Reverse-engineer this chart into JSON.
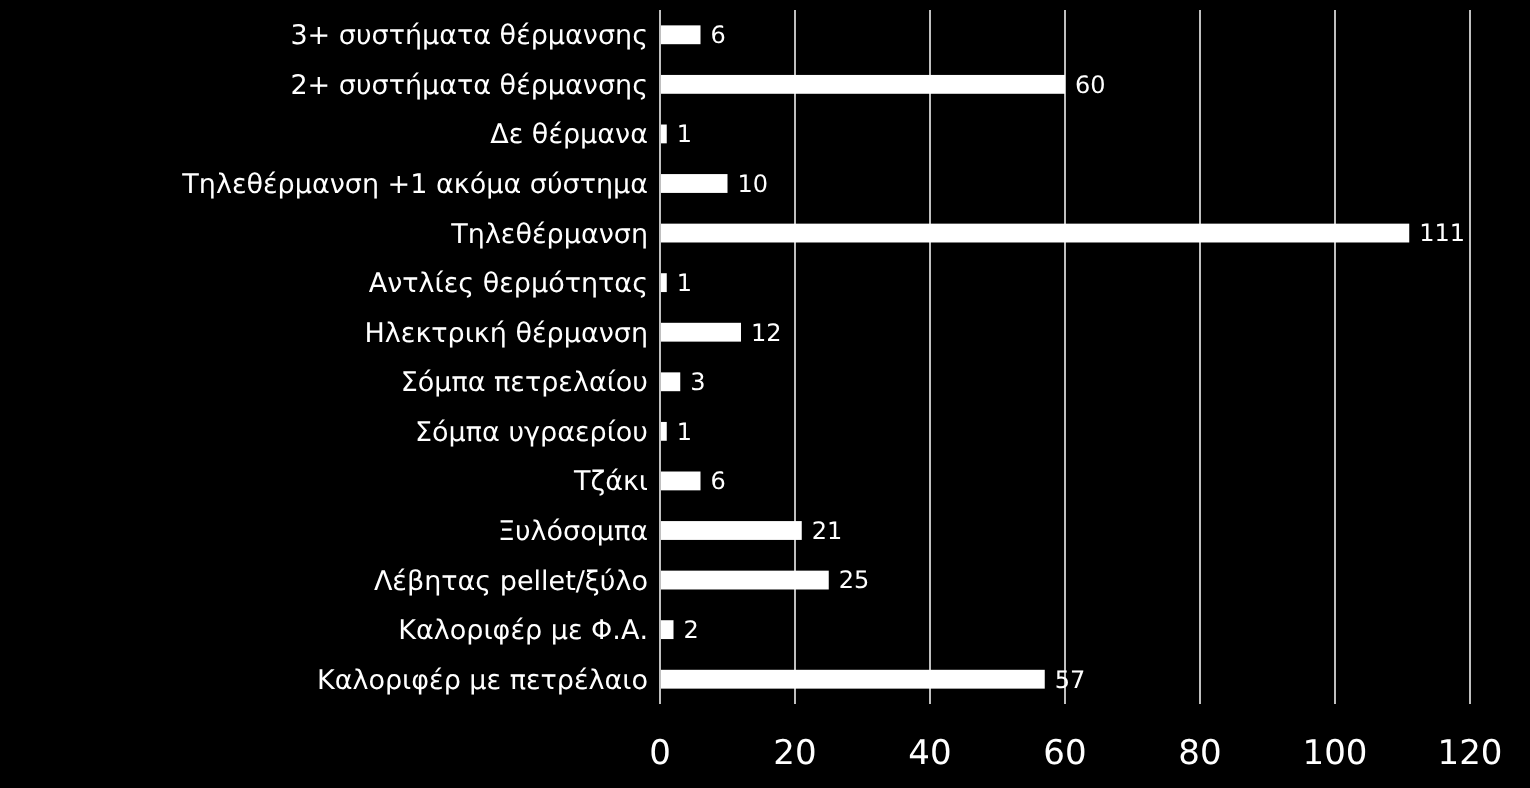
{
  "chart_data": {
    "type": "bar",
    "orientation": "horizontal",
    "categories": [
      "3+ συστήματα θέρμανσης",
      "2+ συστήματα θέρμανσης",
      "Δε θέρμανα",
      "Τηλεθέρμανση +1 ακόμα σύστημα",
      "Τηλεθέρμανση",
      "Αντλίες θερμότητας",
      "Ηλεκτρική θέρμανση",
      "Σόμπα πετρελαίου",
      "Σόμπα υγραερίου",
      "Τζάκι",
      "Ξυλόσομπα",
      "Λέβητας pellet/ξύλο",
      "Καλοριφέρ με Φ.Α.",
      "Καλοριφέρ με πετρέλαιο"
    ],
    "values": [
      6,
      60,
      1,
      10,
      111,
      1,
      12,
      3,
      1,
      6,
      21,
      25,
      2,
      57
    ],
    "color": "#ffffff",
    "xlim": [
      0,
      120
    ],
    "xticks": [
      0,
      20,
      40,
      60,
      80,
      100,
      120
    ],
    "grid": "x",
    "data_labels": true
  }
}
